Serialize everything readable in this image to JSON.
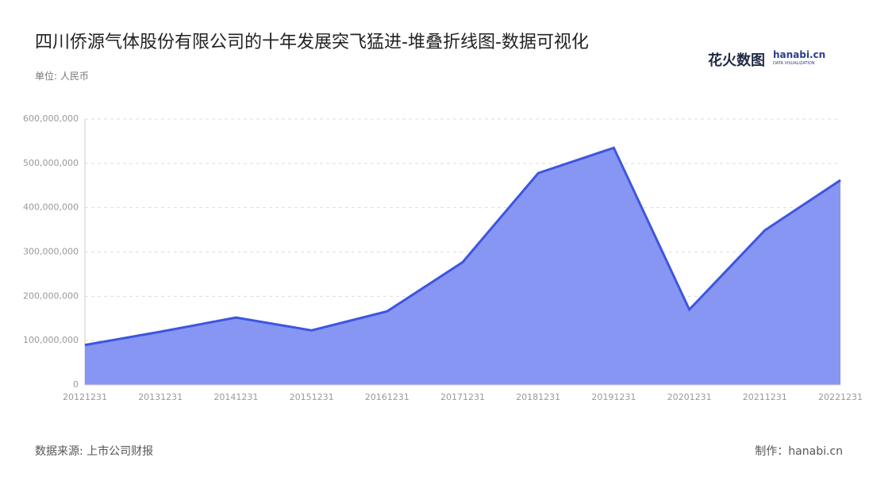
{
  "chart_data": {
    "type": "area",
    "title": "四川侨源气体股份有限公司的十年发展突飞猛进-堆叠折线图-数据可视化",
    "unit_label": "单位: 人民币",
    "source": "数据来源: 上市公司财报",
    "credit": "制作：hanabi.cn",
    "logo": {
      "brand": "花火数图",
      "site": "hanabi.cn",
      "tagline": "DATA VISUALIZATION"
    },
    "categories": [
      "20121231",
      "20131231",
      "20141231",
      "20151231",
      "20161231",
      "20171231",
      "20181231",
      "20191231",
      "20201231",
      "20211231",
      "20221231"
    ],
    "values": [
      90000000,
      120000000,
      152000000,
      123000000,
      166000000,
      277000000,
      478000000,
      535000000,
      170000000,
      349000000,
      462000000
    ],
    "color": "#3d55e0",
    "fill_color": "#8796f2",
    "ylim": [
      0,
      600000000
    ],
    "yticks": [
      0,
      {
        "value": 100000000,
        "label": "100,000,000"
      },
      {
        "value": 200000000,
        "label": "200,000,000"
      },
      {
        "value": 300000000,
        "label": "300,000,000"
      },
      {
        "value": 400000000,
        "label": "400,000,000"
      },
      {
        "value": 500000000,
        "label": "500,000,000"
      },
      {
        "value": 600000000,
        "label": "600,000,000"
      }
    ],
    "grid": true
  }
}
